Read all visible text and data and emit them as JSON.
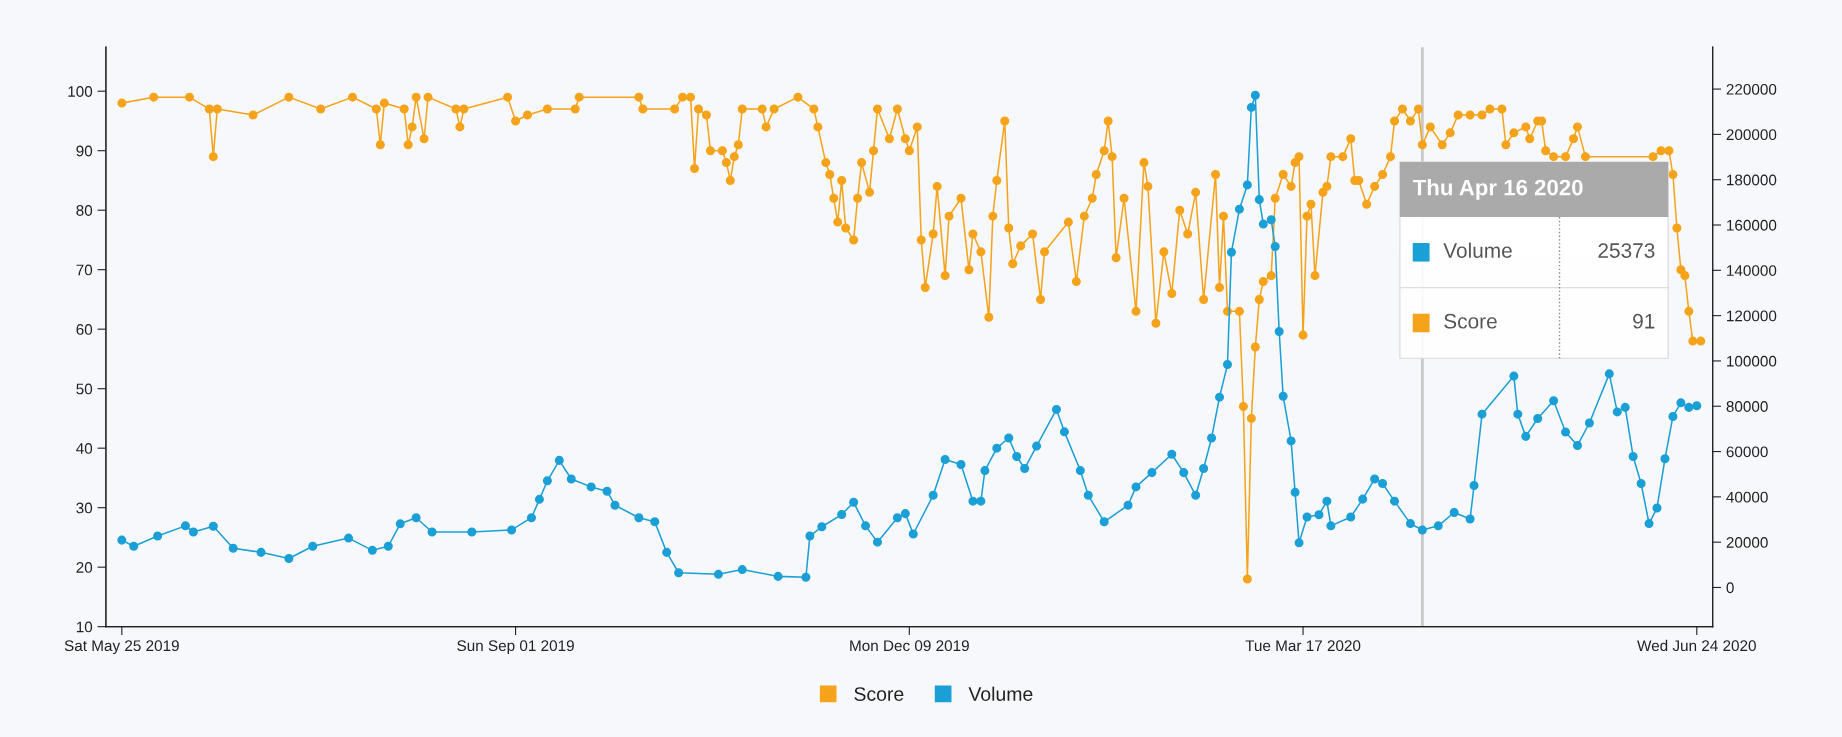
{
  "chart_data": {
    "type": "line",
    "xlim": [
      "2019-05-21",
      "2020-06-28"
    ],
    "xticks": [
      {
        "value": "2019-05-25",
        "label": "Sat May 25 2019"
      },
      {
        "value": "2019-09-01",
        "label": "Sun Sep 01 2019"
      },
      {
        "value": "2019-12-09",
        "label": "Mon Dec 09 2019"
      },
      {
        "value": "2020-03-17",
        "label": "Tue Mar 17 2020"
      },
      {
        "value": "2020-06-24",
        "label": "Wed Jun 24 2020"
      }
    ],
    "ylim": [
      10,
      107.4
    ],
    "yticks": [
      10,
      20,
      30,
      40,
      50,
      60,
      70,
      80,
      90,
      100
    ],
    "y2lim": [
      -17300,
      238500
    ],
    "y2ticks": [
      0,
      20000,
      40000,
      60000,
      80000,
      100000,
      120000,
      140000,
      160000,
      180000,
      200000,
      220000
    ],
    "marker": "circle",
    "line_style": "solid",
    "legend": "bottom",
    "grid": false,
    "ref_lines": [
      {
        "axis": "x",
        "value": "2020-04-16",
        "color": "#c8c8c8"
      }
    ],
    "annotations": [
      "Thu Apr 16 2020",
      "Volume",
      "25373",
      "Score",
      "91"
    ],
    "series": [
      {
        "name": "Score",
        "color": "#f5a31a",
        "x": [
          "2019-05-25",
          "2019-06-02",
          "2019-06-11",
          "2019-06-16",
          "2019-06-17",
          "2019-06-18",
          "2019-06-27",
          "2019-07-06",
          "2019-07-14",
          "2019-07-22",
          "2019-07-28",
          "2019-07-29",
          "2019-07-30",
          "2019-08-04",
          "2019-08-05",
          "2019-08-06",
          "2019-08-07",
          "2019-08-09",
          "2019-08-10",
          "2019-08-17",
          "2019-08-18",
          "2019-08-19",
          "2019-08-30",
          "2019-09-01",
          "2019-09-04",
          "2019-09-09",
          "2019-09-16",
          "2019-09-17",
          "2019-10-02",
          "2019-10-03",
          "2019-10-11",
          "2019-10-13",
          "2019-10-15",
          "2019-10-16",
          "2019-10-17",
          "2019-10-19",
          "2019-10-20",
          "2019-10-23",
          "2019-10-24",
          "2019-10-25",
          "2019-10-26",
          "2019-10-27",
          "2019-10-28",
          "2019-11-02",
          "2019-11-03",
          "2019-11-05",
          "2019-11-11",
          "2019-11-15",
          "2019-11-16",
          "2019-11-18",
          "2019-11-19",
          "2019-11-20",
          "2019-11-21",
          "2019-11-22",
          "2019-11-23",
          "2019-11-25",
          "2019-11-26",
          "2019-11-27",
          "2019-11-29",
          "2019-11-30",
          "2019-12-01",
          "2019-12-04",
          "2019-12-06",
          "2019-12-08",
          "2019-12-09",
          "2019-12-11",
          "2019-12-12",
          "2019-12-13",
          "2019-12-15",
          "2019-12-16",
          "2019-12-18",
          "2019-12-19",
          "2019-12-22",
          "2019-12-24",
          "2019-12-25",
          "2019-12-27",
          "2019-12-29",
          "2019-12-30",
          "2019-12-31",
          "2020-01-02",
          "2020-01-03",
          "2020-01-04",
          "2020-01-06",
          "2020-01-09",
          "2020-01-11",
          "2020-01-12",
          "2020-01-18",
          "2020-01-20",
          "2020-01-22",
          "2020-01-24",
          "2020-01-25",
          "2020-01-27",
          "2020-01-28",
          "2020-01-29",
          "2020-01-30",
          "2020-02-01",
          "2020-02-04",
          "2020-02-06",
          "2020-02-07",
          "2020-02-09",
          "2020-02-11",
          "2020-02-13",
          "2020-02-15",
          "2020-02-17",
          "2020-02-19",
          "2020-02-21",
          "2020-02-24",
          "2020-02-25",
          "2020-02-26",
          "2020-02-27",
          "2020-03-01",
          "2020-03-02",
          "2020-03-03",
          "2020-03-04",
          "2020-03-05",
          "2020-03-06",
          "2020-03-07",
          "2020-03-09",
          "2020-03-10",
          "2020-03-12",
          "2020-03-14",
          "2020-03-15",
          "2020-03-16",
          "2020-03-17",
          "2020-03-18",
          "2020-03-19",
          "2020-03-20",
          "2020-03-22",
          "2020-03-23",
          "2020-03-24",
          "2020-03-27",
          "2020-03-29",
          "2020-03-30",
          "2020-03-31",
          "2020-04-02",
          "2020-04-04",
          "2020-04-06",
          "2020-04-08",
          "2020-04-09",
          "2020-04-11",
          "2020-04-13",
          "2020-04-15",
          "2020-04-16",
          "2020-04-18",
          "2020-04-21",
          "2020-04-23",
          "2020-04-25",
          "2020-04-28",
          "2020-05-01",
          "2020-05-03",
          "2020-05-06",
          "2020-05-07",
          "2020-05-09",
          "2020-05-12",
          "2020-05-13",
          "2020-05-15",
          "2020-05-16",
          "2020-05-17",
          "2020-05-19",
          "2020-05-22",
          "2020-05-24",
          "2020-05-25",
          "2020-05-27",
          "2020-06-13",
          "2020-06-15",
          "2020-06-17",
          "2020-06-18",
          "2020-06-19",
          "2020-06-20",
          "2020-06-21",
          "2020-06-22",
          "2020-06-23",
          "2020-06-25"
        ],
        "values": [
          98,
          99,
          99,
          97,
          89,
          97,
          96,
          99,
          97,
          99,
          97,
          91,
          98,
          97,
          91,
          94,
          99,
          92,
          99,
          97,
          94,
          97,
          99,
          95,
          96,
          97,
          97,
          99,
          99,
          97,
          97,
          99,
          99,
          87,
          97,
          96,
          90,
          90,
          88,
          85,
          89,
          91,
          97,
          97,
          94,
          97,
          99,
          97,
          94,
          88,
          86,
          82,
          78,
          85,
          77,
          75,
          82,
          88,
          83,
          90,
          97,
          92,
          97,
          92,
          90,
          94,
          75,
          67,
          76,
          84,
          69,
          79,
          82,
          70,
          76,
          73,
          62,
          79,
          85,
          95,
          77,
          71,
          74,
          76,
          65,
          73,
          78,
          68,
          79,
          82,
          86,
          90,
          95,
          89,
          72,
          82,
          63,
          88,
          84,
          61,
          73,
          66,
          80,
          76,
          83,
          65,
          86,
          67,
          79,
          63,
          63,
          47,
          18,
          45,
          57,
          65,
          68,
          69,
          82,
          86,
          84,
          88,
          89,
          59,
          79,
          81,
          69,
          83,
          84,
          89,
          89,
          92,
          85,
          85,
          81,
          84,
          86,
          89,
          95,
          97,
          95,
          97,
          91,
          94,
          91,
          93,
          96,
          96,
          96,
          97,
          97,
          91,
          93,
          94,
          92,
          95,
          95,
          90,
          89,
          89,
          92,
          94,
          89,
          89,
          90,
          90,
          86,
          77,
          70,
          69,
          63,
          58,
          58
        ]
      },
      {
        "name": "Volume",
        "color": "#1a9fd6",
        "axis": "y2",
        "x": [
          "2019-05-25",
          "2019-05-28",
          "2019-06-03",
          "2019-06-10",
          "2019-06-12",
          "2019-06-17",
          "2019-06-22",
          "2019-06-29",
          "2019-07-06",
          "2019-07-12",
          "2019-07-21",
          "2019-07-27",
          "2019-07-31",
          "2019-08-03",
          "2019-08-07",
          "2019-08-11",
          "2019-08-21",
          "2019-08-31",
          "2019-09-05",
          "2019-09-07",
          "2019-09-09",
          "2019-09-12",
          "2019-09-15",
          "2019-09-20",
          "2019-09-24",
          "2019-09-26",
          "2019-10-02",
          "2019-10-06",
          "2019-10-09",
          "2019-10-12",
          "2019-10-22",
          "2019-10-28",
          "2019-11-06",
          "2019-11-13",
          "2019-11-14",
          "2019-11-17",
          "2019-11-22",
          "2019-11-25",
          "2019-11-28",
          "2019-12-01",
          "2019-12-06",
          "2019-12-08",
          "2019-12-10",
          "2019-12-15",
          "2019-12-18",
          "2019-12-22",
          "2019-12-25",
          "2019-12-27",
          "2019-12-28",
          "2019-12-31",
          "2020-01-03",
          "2020-01-05",
          "2020-01-07",
          "2020-01-10",
          "2020-01-15",
          "2020-01-17",
          "2020-01-21",
          "2020-01-23",
          "2020-01-27",
          "2020-02-02",
          "2020-02-04",
          "2020-02-08",
          "2020-02-13",
          "2020-02-16",
          "2020-02-19",
          "2020-02-21",
          "2020-02-23",
          "2020-02-25",
          "2020-02-27",
          "2020-02-28",
          "2020-03-01",
          "2020-03-03",
          "2020-03-04",
          "2020-03-05",
          "2020-03-06",
          "2020-03-07",
          "2020-03-09",
          "2020-03-10",
          "2020-03-11",
          "2020-03-12",
          "2020-03-14",
          "2020-03-15",
          "2020-03-16",
          "2020-03-18",
          "2020-03-21",
          "2020-03-23",
          "2020-03-24",
          "2020-03-29",
          "2020-04-01",
          "2020-04-04",
          "2020-04-06",
          "2020-04-09",
          "2020-04-13",
          "2020-04-16",
          "2020-04-20",
          "2020-04-24",
          "2020-04-28",
          "2020-04-29",
          "2020-05-01",
          "2020-05-09",
          "2020-05-10",
          "2020-05-12",
          "2020-05-15",
          "2020-05-19",
          "2020-05-22",
          "2020-05-25",
          "2020-05-28",
          "2020-06-02",
          "2020-06-04",
          "2020-06-06",
          "2020-06-08",
          "2020-06-10",
          "2020-06-12",
          "2020-06-14",
          "2020-06-16",
          "2020-06-18",
          "2020-06-20",
          "2020-06-22",
          "2020-06-24"
        ],
        "values": [
          20900,
          18200,
          22700,
          27200,
          24500,
          27000,
          17300,
          15500,
          12800,
          18200,
          21800,
          16400,
          18200,
          28100,
          30800,
          24500,
          24500,
          25400,
          30800,
          38900,
          47100,
          56100,
          47900,
          44400,
          42500,
          36300,
          30800,
          29000,
          15500,
          6500,
          5800,
          7900,
          4900,
          4500,
          22700,
          26800,
          32200,
          37600,
          27200,
          20000,
          30800,
          32600,
          23600,
          40700,
          56500,
          54300,
          38100,
          38100,
          51600,
          61500,
          66000,
          57800,
          52500,
          62400,
          78600,
          68700,
          51600,
          40700,
          29000,
          36300,
          44400,
          50700,
          58800,
          50700,
          40700,
          52500,
          66000,
          84000,
          98400,
          148000,
          167000,
          177700,
          211900,
          217300,
          171200,
          160400,
          162300,
          150500,
          113000,
          84400,
          64700,
          42000,
          19700,
          31100,
          32100,
          38100,
          27200,
          31100,
          39000,
          47900,
          45900,
          38100,
          28200,
          25373,
          27200,
          33100,
          30200,
          45000,
          76500,
          93300,
          76500,
          66700,
          74600,
          82400,
          68600,
          62700,
          72600,
          94300,
          77500,
          79500,
          57800,
          45900,
          28200,
          35100,
          56800,
          75500,
          81500,
          79500,
          80200
        ]
      }
    ]
  }
}
